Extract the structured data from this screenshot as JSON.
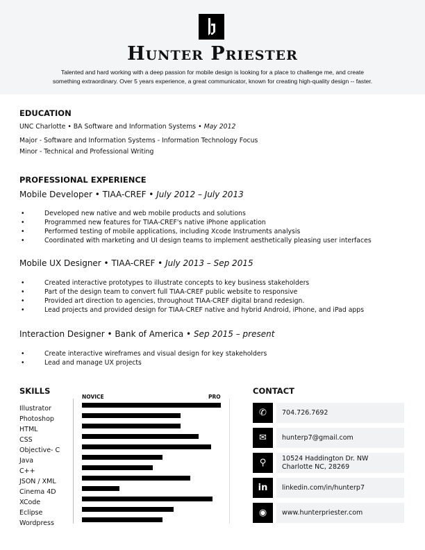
{
  "header": {
    "name": "Hunter Priester",
    "summary_line1": "Talented and hard working with a deep passion for mobile design is looking for a place to challenge me, and create",
    "summary_line2": "something extraordinary.  Over 5 years experience, a great communicator, known for creating high-quality design -- faster."
  },
  "education": {
    "title": "EDUCATION",
    "line1": "UNC Charlotte • BA Software and Information Systems •",
    "line1_date": "May 2012",
    "line2": "Major - Software and Information Systems - Information Technology Focus",
    "line3": "Minor - Technical and Professional Writing"
  },
  "experience": {
    "title": "PROFESSIONAL EXPERIENCE",
    "jobs": [
      {
        "role": "Mobile Developer • TIAA-CREF •",
        "dates": "July 2012 – July 2013",
        "bullets": [
          "Developed new native and web mobile products and solutions",
          "Programmed new features for TIAA-CREF's native iPhone application",
          "Performed testing of mobile applications, including Xcode Instruments analysis",
          "Coordinated with marketing and UI design teams to implement aesthetically pleasing user interfaces"
        ]
      },
      {
        "role": "Mobile UX Designer • TIAA-CREF •",
        "dates": "July 2013 – Sep 2015",
        "bullets": [
          "Created interactive prototypes to illustrate concepts to key business stakeholders",
          "Part of the design team to convert full TIAA-CREF public website to responsive",
          "Provided art direction to agencies, throughout TIAA-CREF digital brand redesign.",
          "Lead projects and provided design for TIAA-CREF native and hybrid Android, iPhone, and iPad apps"
        ]
      },
      {
        "role": "Interaction Designer • Bank of America •",
        "dates": "Sep 2015 – present",
        "bullets": [
          "Create interactive wireframes and visual design for key stakeholders",
          "Lead and manage UX projects"
        ]
      }
    ]
  },
  "skills": {
    "title": "SKILLS",
    "scale_min": "NOVICE",
    "scale_max": "PRO",
    "items": [
      {
        "name": "Illustrator",
        "level": 100
      },
      {
        "name": "Photoshop",
        "level": 71
      },
      {
        "name": "HTML",
        "level": 71
      },
      {
        "name": "CSS",
        "level": 84
      },
      {
        "name": "Objective- C",
        "level": 93
      },
      {
        "name": "Java",
        "level": 58
      },
      {
        "name": "C++",
        "level": 51
      },
      {
        "name": "JSON / XML",
        "level": 78
      },
      {
        "name": "Cinema 4D",
        "level": 27
      },
      {
        "name": "XCode",
        "level": 94
      },
      {
        "name": "Eclipse",
        "level": 66
      },
      {
        "name": "Wordpress",
        "level": 58
      }
    ]
  },
  "contact": {
    "title": "CONTACT",
    "items": [
      {
        "icon": "phone-icon",
        "glyph": "✆",
        "line1": "704.726.7692"
      },
      {
        "icon": "email-icon",
        "glyph": "✉",
        "line1": "hunterp7@gmail.com"
      },
      {
        "icon": "location-pin-icon",
        "glyph": "⚲",
        "line1": "10524 Haddington Dr. NW",
        "line2": "Charlotte NC, 28269"
      },
      {
        "icon": "linkedin-icon",
        "glyph": "in",
        "line1": "linkedin.com/in/hunterp7"
      },
      {
        "icon": "globe-icon",
        "glyph": "◉",
        "line1": "www.hunterpriester.com"
      }
    ]
  }
}
